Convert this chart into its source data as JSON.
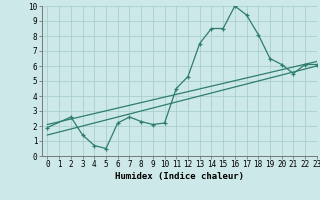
{
  "bg_color": "#cce8e8",
  "grid_color": "#aacfcf",
  "line_color": "#2e7d6e",
  "xlabel": "Humidex (Indice chaleur)",
  "xlim": [
    -0.5,
    23
  ],
  "ylim": [
    0,
    10
  ],
  "xticks": [
    0,
    1,
    2,
    3,
    4,
    5,
    6,
    7,
    8,
    9,
    10,
    11,
    12,
    13,
    14,
    15,
    16,
    17,
    18,
    19,
    20,
    21,
    22,
    23
  ],
  "yticks": [
    0,
    1,
    2,
    3,
    4,
    5,
    6,
    7,
    8,
    9,
    10
  ],
  "line1_x": [
    0,
    2,
    3,
    4,
    5,
    6,
    7,
    8,
    9,
    10,
    11,
    12,
    13,
    14,
    15,
    16,
    17,
    18,
    19,
    20,
    21,
    22,
    23
  ],
  "line1_y": [
    1.9,
    2.6,
    1.4,
    0.7,
    0.5,
    2.2,
    2.6,
    2.3,
    2.1,
    2.2,
    4.5,
    5.3,
    7.5,
    8.5,
    8.5,
    10.0,
    9.4,
    8.1,
    6.5,
    6.1,
    5.5,
    6.1,
    6.1
  ],
  "line2_x": [
    0,
    23
  ],
  "line2_y": [
    2.1,
    6.3
  ],
  "line3_x": [
    0,
    23
  ],
  "line3_y": [
    1.4,
    6.0
  ],
  "tick_fontsize": 5.5,
  "xlabel_fontsize": 6.5
}
